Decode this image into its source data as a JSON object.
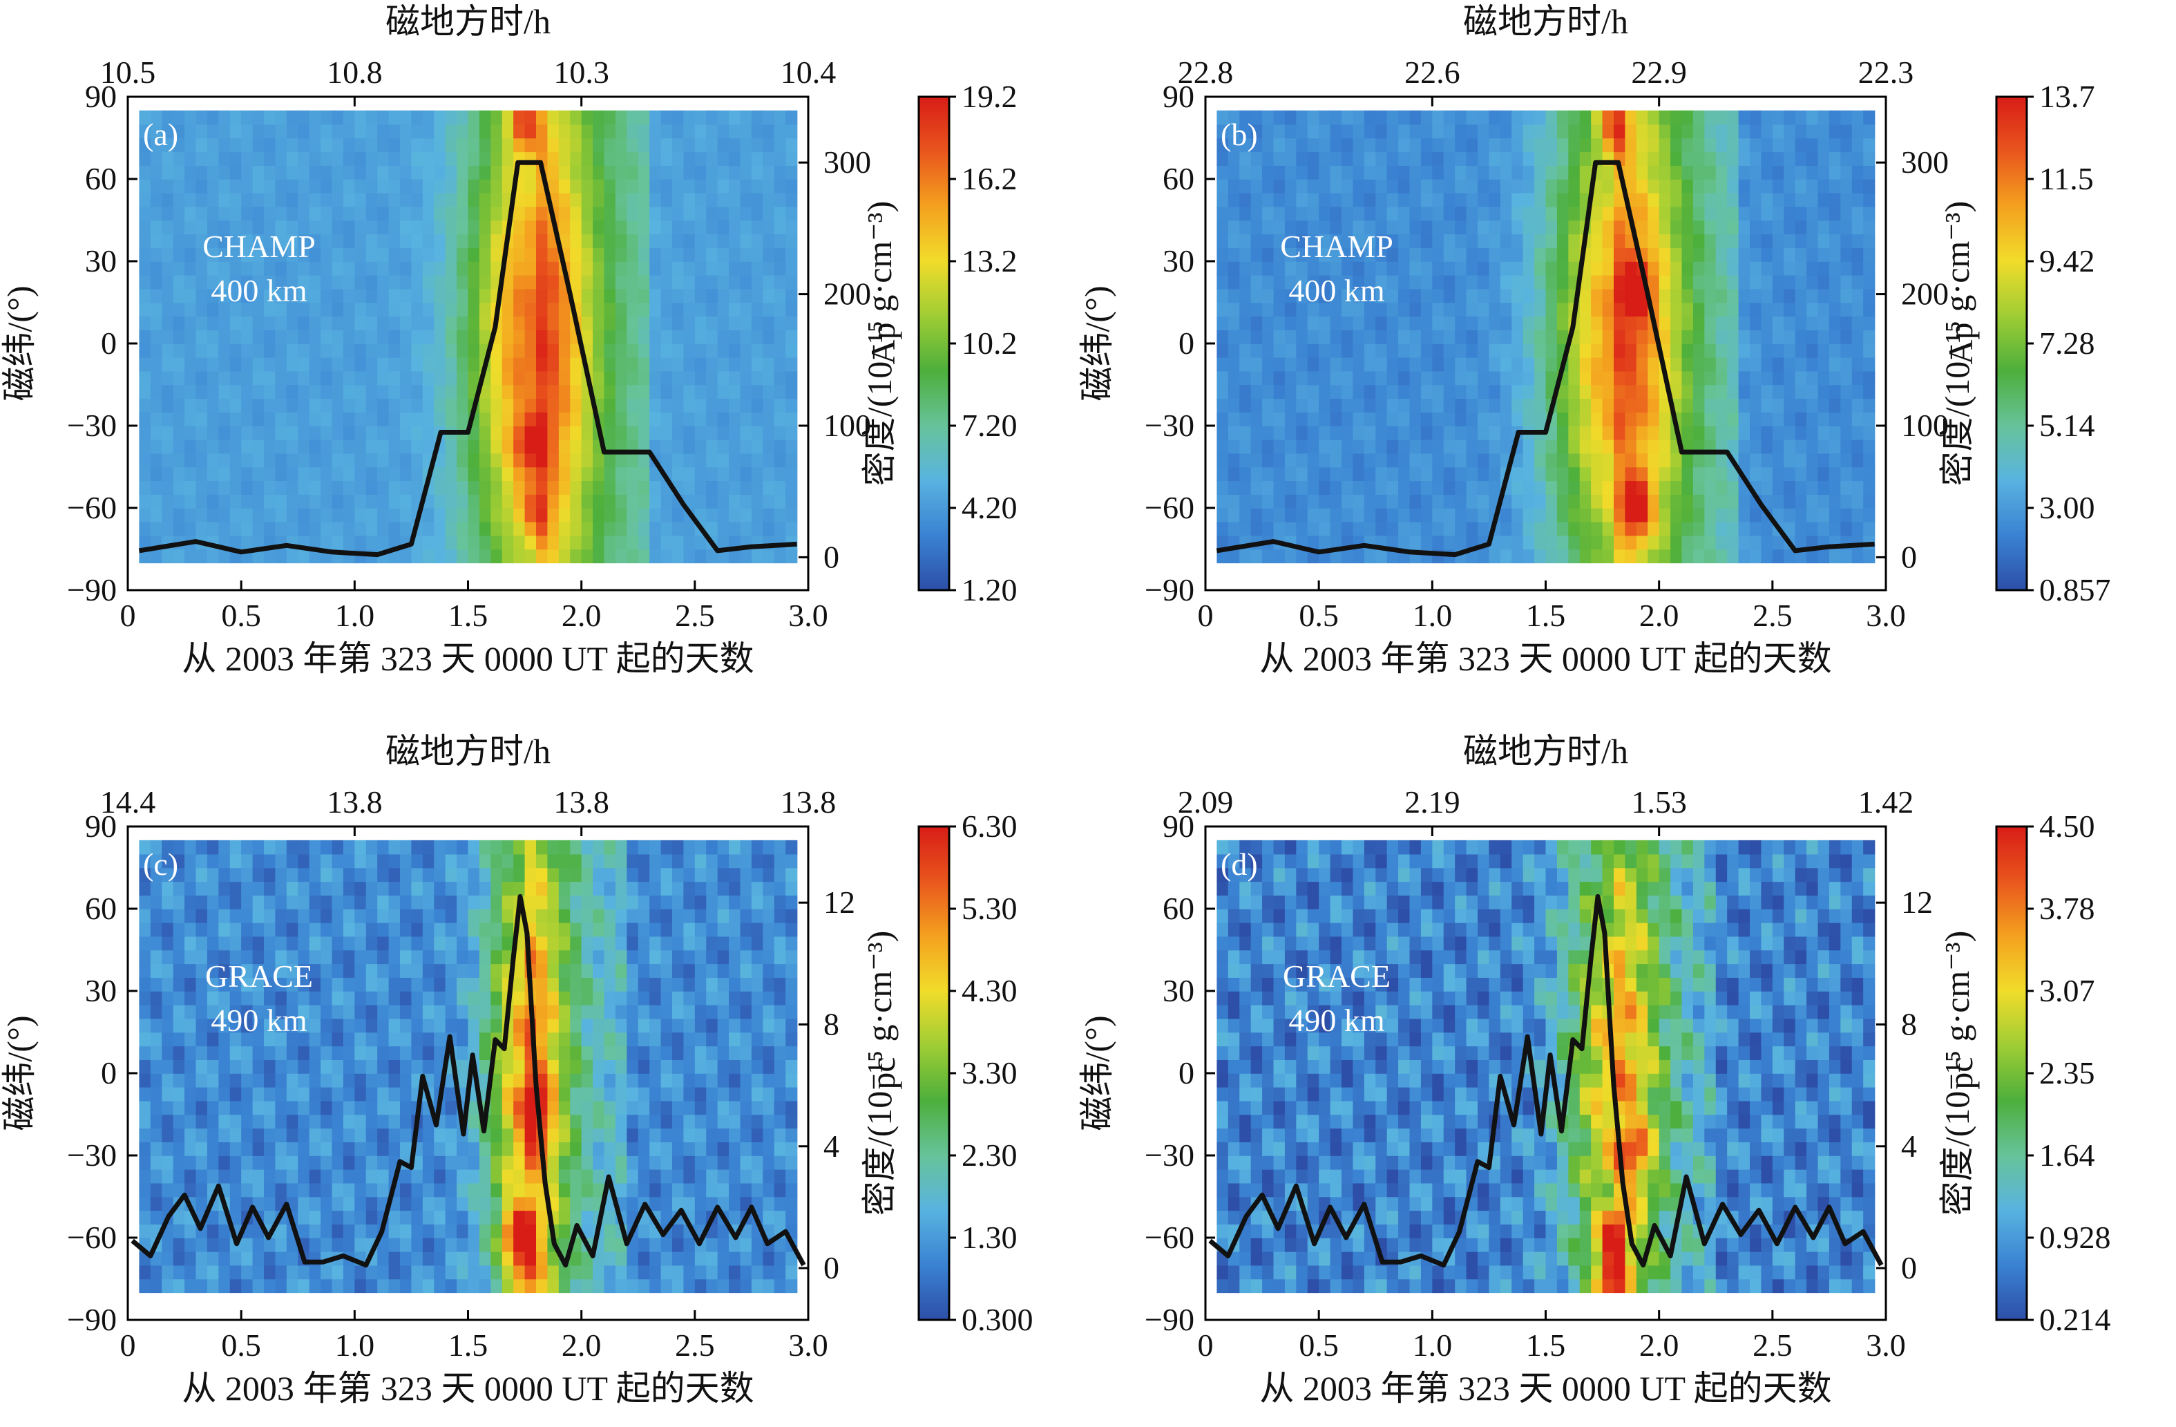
{
  "colors": {
    "colormap": [
      "#2d4fa8",
      "#3a82d2",
      "#58b3e0",
      "#67c39a",
      "#4daf3c",
      "#9fcd34",
      "#f1dc2a",
      "#f4a11f",
      "#e9561d",
      "#d81d17"
    ],
    "line": "#111111",
    "axis": "#000000"
  },
  "chart_data": [
    {
      "panel": "(a)",
      "type": "heatmap",
      "satellite": "CHAMP",
      "altitude": "400 km",
      "title_top": "磁地方时/h",
      "top_ticks": [
        "10.5",
        "10.8",
        "10.3",
        "10.4"
      ],
      "xlabel": "从 2003 年第 323 天 0000 UT 起的天数",
      "ylabel": "磁纬/(°)",
      "right_label": "Ap",
      "cbar_label": "密度/(10⁻¹⁵ g·cm⁻³)",
      "x_ticks": [
        "0",
        "0.5",
        "1.0",
        "1.5",
        "2.0",
        "2.5",
        "3.0"
      ],
      "y_ticks": [
        "90",
        "60",
        "30",
        "0",
        "−30",
        "−60",
        "−90"
      ],
      "right_ticks": [
        "300",
        "200",
        "100",
        "0"
      ],
      "cbar_ticks": [
        "19.2",
        "16.2",
        "13.2",
        "10.2",
        "7.20",
        "4.20",
        "1.20"
      ],
      "xlim": [
        0,
        3.0
      ],
      "ylim": [
        -90,
        90
      ],
      "right_range": [
        -25,
        350
      ],
      "right_tick_values": [
        300,
        200,
        100,
        0
      ],
      "cbar_range": [
        1.2,
        19.2
      ],
      "field": {
        "base": 4.4,
        "peak": 16.5,
        "center": 1.78,
        "width": 0.28,
        "east_tail": 2.3,
        "hot_spots": [
          [
            1.75,
            80,
            19
          ],
          [
            1.78,
            -38,
            17
          ],
          [
            1.8,
            -62,
            16
          ]
        ]
      },
      "index_series": {
        "x": [
          0.05,
          0.3,
          0.5,
          0.7,
          0.9,
          1.1,
          1.25,
          1.38,
          1.5,
          1.62,
          1.72,
          1.82,
          1.95,
          2.1,
          2.2,
          2.3,
          2.45,
          2.6,
          2.75,
          2.95
        ],
        "y": [
          5,
          12,
          4,
          9,
          4,
          2,
          10,
          95,
          95,
          175,
          300,
          300,
          200,
          80,
          80,
          80,
          40,
          5,
          8,
          10
        ]
      }
    },
    {
      "panel": "(b)",
      "type": "heatmap",
      "satellite": "CHAMP",
      "altitude": "400 km",
      "title_top": "磁地方时/h",
      "top_ticks": [
        "22.8",
        "22.6",
        "22.9",
        "22.3"
      ],
      "xlabel": "从 2003 年第 323 天 0000 UT 起的天数",
      "ylabel": "磁纬/(°)",
      "right_label": "Ap",
      "cbar_label": "密度/(10⁻¹⁵ g·cm⁻³)",
      "x_ticks": [
        "0",
        "0.5",
        "1.0",
        "1.5",
        "2.0",
        "2.5",
        "3.0"
      ],
      "y_ticks": [
        "90",
        "60",
        "30",
        "0",
        "−30",
        "−60",
        "−90"
      ],
      "right_ticks": [
        "300",
        "200",
        "100",
        "0"
      ],
      "cbar_ticks": [
        "13.7",
        "11.5",
        "9.42",
        "7.28",
        "5.14",
        "3.00",
        "0.857"
      ],
      "xlim": [
        0,
        3.0
      ],
      "ylim": [
        -90,
        90
      ],
      "right_range": [
        -25,
        350
      ],
      "right_tick_values": [
        300,
        200,
        100,
        0
      ],
      "cbar_range": [
        0.857,
        13.7
      ],
      "field": {
        "base": 2.6,
        "peak": 11.2,
        "center": 1.82,
        "width": 0.3,
        "east_tail": 2.35,
        "hot_spots": [
          [
            1.9,
            -60,
            13.5
          ],
          [
            1.8,
            80,
            13
          ],
          [
            1.9,
            20,
            12
          ]
        ]
      },
      "index_series": {
        "x": [
          0.05,
          0.3,
          0.5,
          0.7,
          0.9,
          1.1,
          1.25,
          1.38,
          1.5,
          1.62,
          1.72,
          1.82,
          1.95,
          2.1,
          2.2,
          2.3,
          2.45,
          2.6,
          2.75,
          2.95
        ],
        "y": [
          5,
          12,
          4,
          9,
          4,
          2,
          10,
          95,
          95,
          175,
          300,
          300,
          200,
          80,
          80,
          80,
          40,
          5,
          8,
          10
        ]
      }
    },
    {
      "panel": "(c)",
      "type": "heatmap",
      "satellite": "GRACE",
      "altitude": "490 km",
      "title_top": "磁地方时/h",
      "top_ticks": [
        "14.4",
        "13.8",
        "13.8",
        "13.8"
      ],
      "xlabel": "从 2003 年第 323 天 0000 UT 起的天数",
      "ylabel": "磁纬/(°)",
      "right_label": "pc",
      "cbar_label": "密度/(10⁻¹⁵ g·cm⁻³)",
      "x_ticks": [
        "0",
        "0.5",
        "1.0",
        "1.5",
        "2.0",
        "2.5",
        "3.0"
      ],
      "y_ticks": [
        "90",
        "60",
        "30",
        "0",
        "−30",
        "−60",
        "−90"
      ],
      "right_ticks": [
        "12",
        "8",
        "4",
        "0"
      ],
      "cbar_ticks": [
        "6.30",
        "5.30",
        "4.30",
        "3.30",
        "2.30",
        "1.30",
        "0.300"
      ],
      "xlim": [
        0,
        3.0
      ],
      "ylim": [
        -90,
        90
      ],
      "right_range": [
        -1.7,
        14.5
      ],
      "right_tick_values": [
        12,
        8,
        4,
        0
      ],
      "cbar_range": [
        0.3,
        6.3
      ],
      "field": {
        "base": 1.1,
        "peak": 4.9,
        "center": 1.76,
        "width": 0.18,
        "east_tail": 2.2,
        "hot_spots": [
          [
            1.72,
            -58,
            6.2
          ],
          [
            1.75,
            -70,
            5.6
          ],
          [
            1.8,
            -15,
            5.2
          ]
        ]
      },
      "index_series": {
        "x": [
          0.02,
          0.1,
          0.18,
          0.25,
          0.32,
          0.4,
          0.48,
          0.55,
          0.62,
          0.7,
          0.78,
          0.86,
          0.95,
          1.05,
          1.12,
          1.2,
          1.25,
          1.3,
          1.36,
          1.42,
          1.48,
          1.52,
          1.57,
          1.62,
          1.66,
          1.7,
          1.73,
          1.76,
          1.8,
          1.84,
          1.88,
          1.93,
          1.98,
          2.05,
          2.12,
          2.2,
          2.28,
          2.36,
          2.44,
          2.52,
          2.6,
          2.68,
          2.75,
          2.82,
          2.9,
          2.98
        ],
        "y": [
          0.9,
          0.4,
          1.7,
          2.4,
          1.3,
          2.7,
          0.8,
          2.0,
          1.0,
          2.1,
          0.2,
          0.2,
          0.4,
          0.1,
          1.2,
          3.5,
          3.3,
          6.3,
          4.7,
          7.6,
          4.4,
          7.0,
          4.5,
          7.5,
          7.2,
          10.2,
          12.2,
          11.0,
          6.0,
          2.8,
          0.8,
          0.1,
          1.4,
          0.4,
          3.0,
          0.8,
          2.1,
          1.1,
          1.9,
          0.8,
          2.0,
          1.0,
          2.0,
          0.8,
          1.2,
          0.1
        ]
      }
    },
    {
      "panel": "(d)",
      "type": "heatmap",
      "satellite": "GRACE",
      "altitude": "490 km",
      "title_top": "磁地方时/h",
      "top_ticks": [
        "2.09",
        "2.19",
        "1.53",
        "1.42"
      ],
      "xlabel": "从 2003 年第 323 天 0000 UT 起的天数",
      "ylabel": "磁纬/(°)",
      "right_label": "pc",
      "cbar_label": "密度/(10⁻¹⁵ g·cm⁻³)",
      "x_ticks": [
        "0",
        "0.5",
        "1.0",
        "1.5",
        "2.0",
        "2.5",
        "3.0"
      ],
      "y_ticks": [
        "90",
        "60",
        "30",
        "0",
        "−30",
        "−60",
        "−90"
      ],
      "right_ticks": [
        "12",
        "8",
        "4",
        "0"
      ],
      "cbar_ticks": [
        "4.50",
        "3.78",
        "3.07",
        "2.35",
        "1.64",
        "0.928",
        "0.214"
      ],
      "xlim": [
        0,
        3.0
      ],
      "ylim": [
        -90,
        90
      ],
      "right_range": [
        -1.7,
        14.5
      ],
      "right_tick_values": [
        12,
        8,
        4,
        0
      ],
      "cbar_range": [
        0.214,
        4.5
      ],
      "field": {
        "base": 0.7,
        "peak": 3.2,
        "center": 1.8,
        "width": 0.22,
        "east_tail": 2.25,
        "hot_spots": [
          [
            1.78,
            -75,
            4.4
          ],
          [
            1.8,
            -60,
            4.0
          ],
          [
            1.9,
            -30,
            3.4
          ]
        ]
      },
      "index_series": {
        "x": [
          0.02,
          0.1,
          0.18,
          0.25,
          0.32,
          0.4,
          0.48,
          0.55,
          0.62,
          0.7,
          0.78,
          0.86,
          0.95,
          1.05,
          1.12,
          1.2,
          1.25,
          1.3,
          1.36,
          1.42,
          1.48,
          1.52,
          1.57,
          1.62,
          1.66,
          1.7,
          1.73,
          1.76,
          1.8,
          1.84,
          1.88,
          1.93,
          1.98,
          2.05,
          2.12,
          2.2,
          2.28,
          2.36,
          2.44,
          2.52,
          2.6,
          2.68,
          2.75,
          2.82,
          2.9,
          2.98
        ],
        "y": [
          0.9,
          0.4,
          1.7,
          2.4,
          1.3,
          2.7,
          0.8,
          2.0,
          1.0,
          2.1,
          0.2,
          0.2,
          0.4,
          0.1,
          1.2,
          3.5,
          3.3,
          6.3,
          4.7,
          7.6,
          4.4,
          7.0,
          4.5,
          7.5,
          7.2,
          10.2,
          12.2,
          11.0,
          6.0,
          2.8,
          0.8,
          0.1,
          1.4,
          0.4,
          3.0,
          0.8,
          2.1,
          1.1,
          1.9,
          0.8,
          2.0,
          1.0,
          2.0,
          0.8,
          1.2,
          0.1
        ]
      }
    }
  ]
}
